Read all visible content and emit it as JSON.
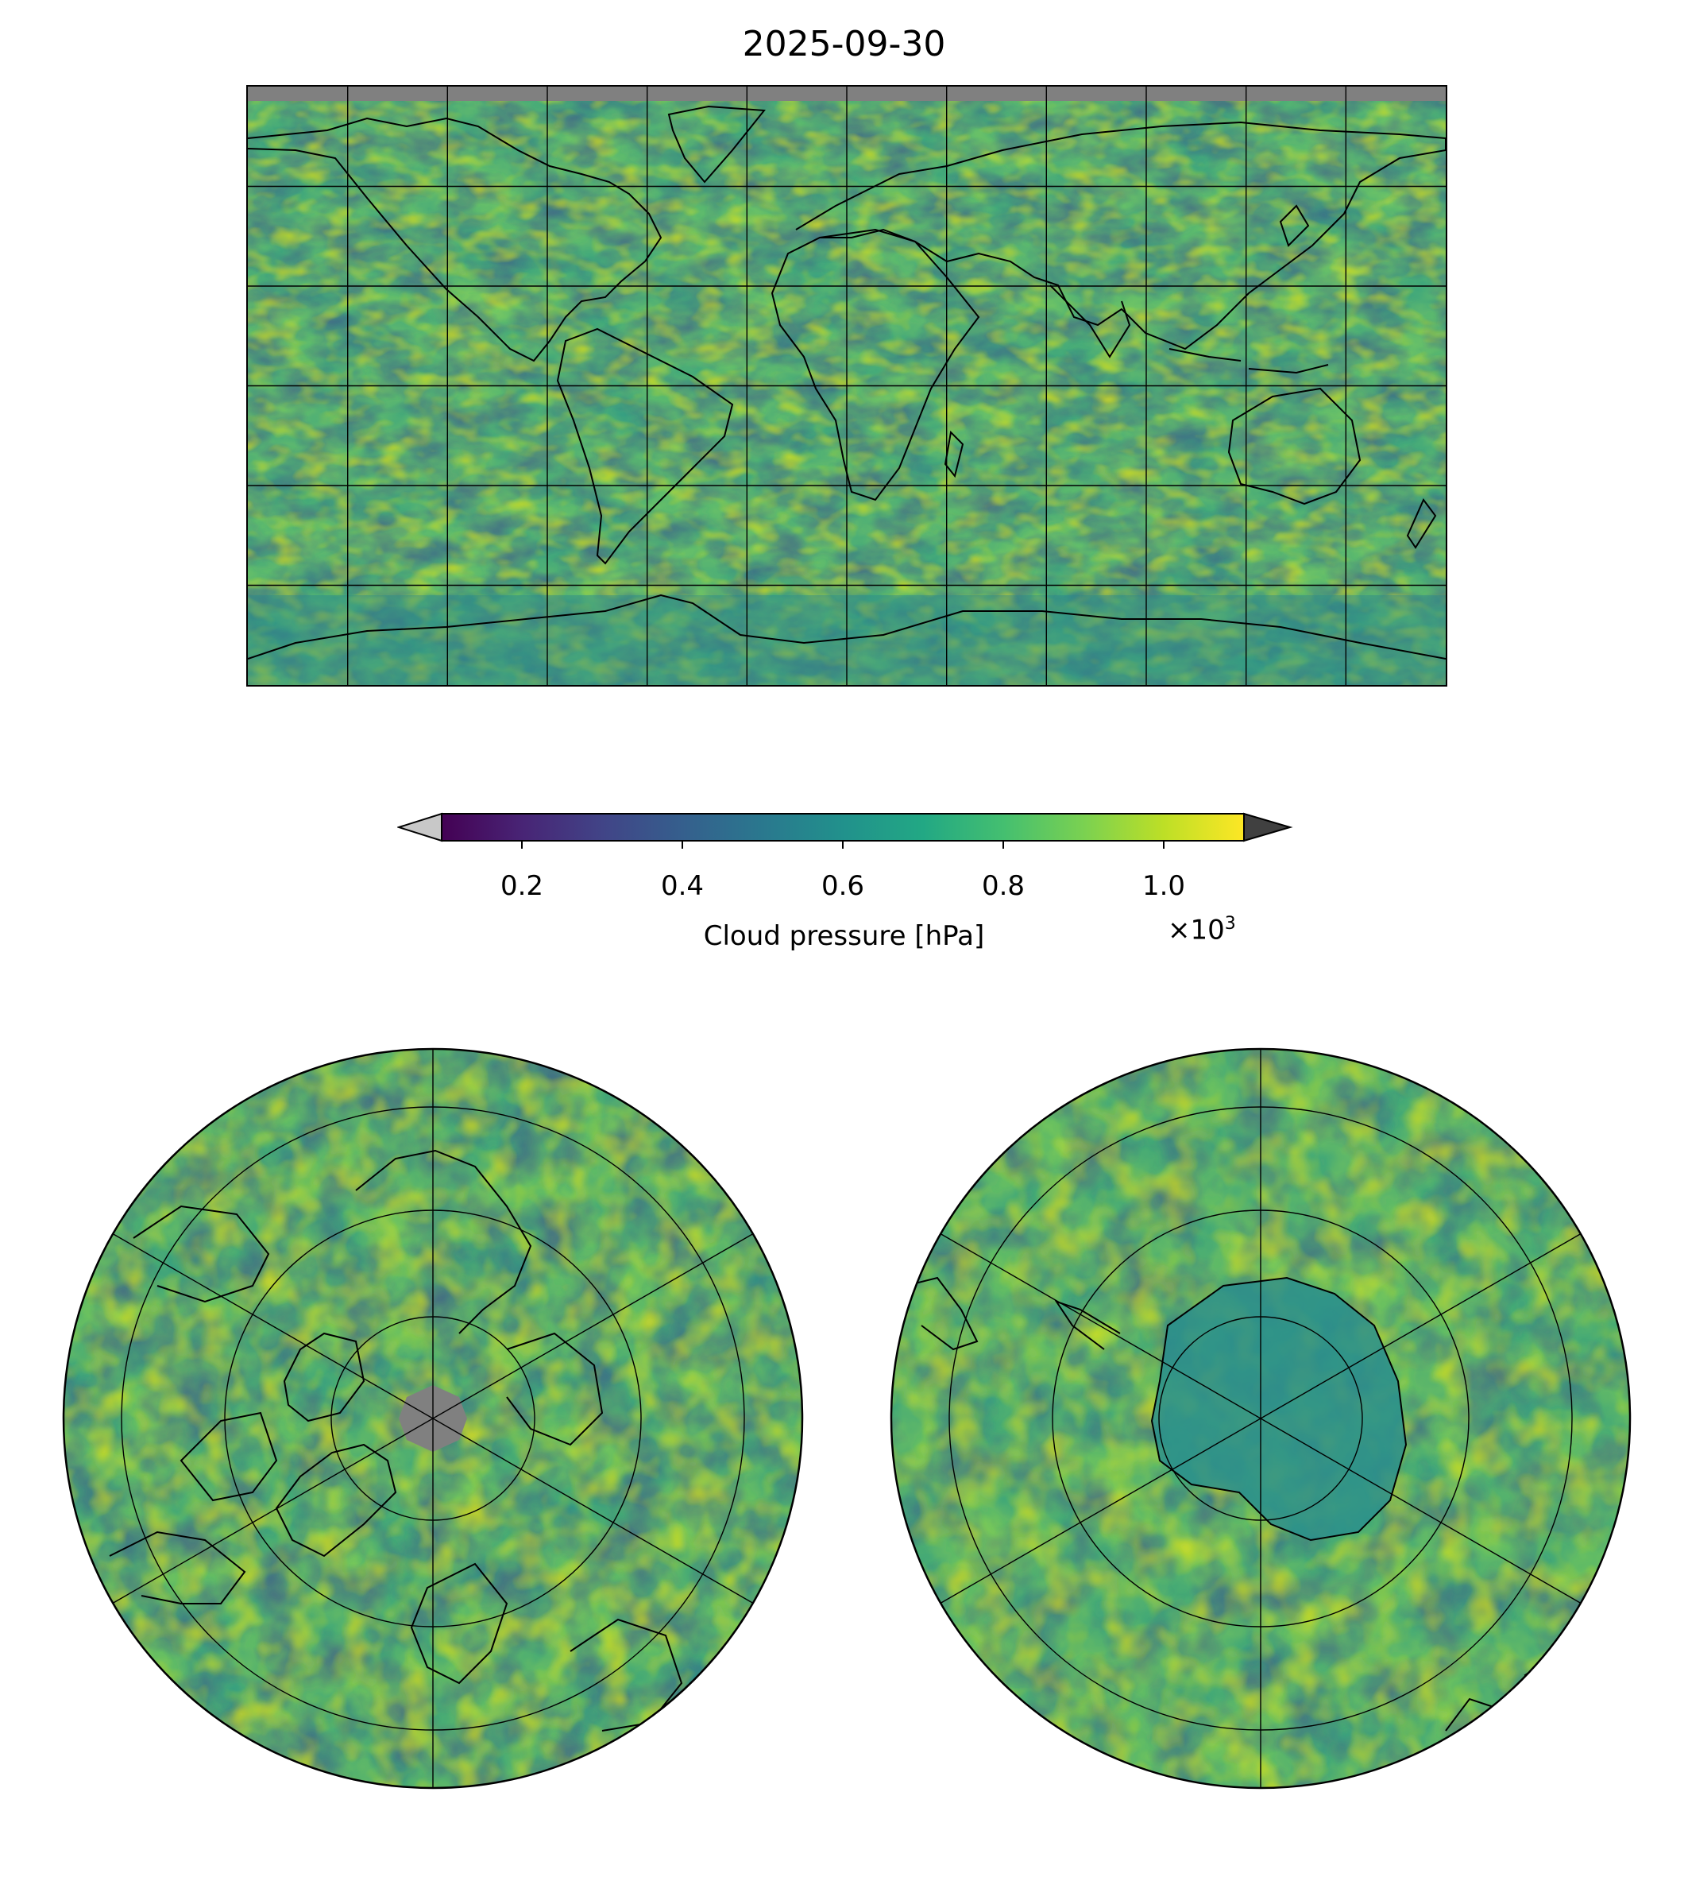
{
  "title": "2025-09-30",
  "colorbar": {
    "label": "Cloud pressure [hPa]",
    "multiplier_base": "×10",
    "multiplier_exp": "3",
    "ticks": [
      "0.2",
      "0.4",
      "0.6",
      "0.8",
      "1.0"
    ],
    "tick_values": [
      0.2,
      0.4,
      0.6,
      0.8,
      1.0
    ],
    "vmin": 0.1,
    "vmax": 1.1,
    "colormap": "viridis",
    "under_color": "#c8c8c8",
    "over_color": "#404040",
    "nodata_color": "#808080"
  },
  "maps": {
    "main": {
      "projection": "plate-carree",
      "field": "cloud pressure"
    },
    "north": {
      "projection": "north-polar-stereographic",
      "field": "cloud pressure"
    },
    "south": {
      "projection": "south-polar-stereographic",
      "field": "cloud pressure"
    }
  },
  "palette": {
    "c0": "#440154",
    "c1": "#3b528b",
    "c2": "#21918c",
    "c3": "#5ec962",
    "c4": "#fde725",
    "land": "#6cc35a",
    "coast": "#000000"
  }
}
